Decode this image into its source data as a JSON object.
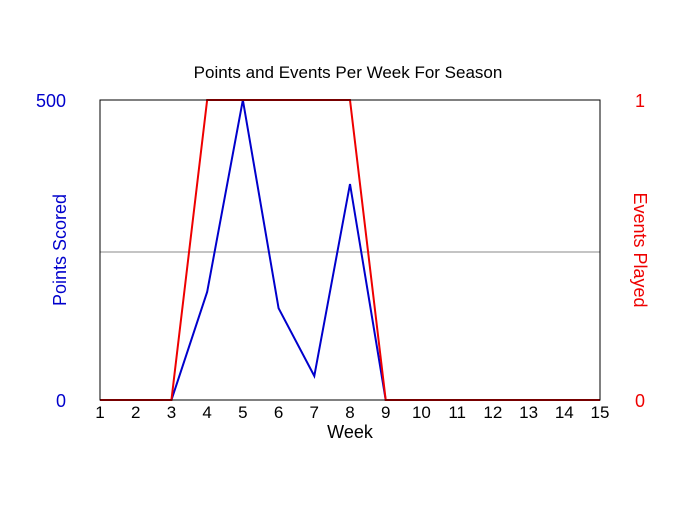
{
  "chart_data": {
    "type": "line",
    "title": "Points and Events Per Week For Season",
    "xlabel": "Week",
    "ylabel_left": "Points Scored",
    "ylabel_right": "Events Played",
    "x": [
      1,
      2,
      3,
      4,
      5,
      6,
      7,
      8,
      9,
      10,
      11,
      12,
      13,
      14,
      15
    ],
    "xlim": [
      1,
      15
    ],
    "ylim_left": [
      0,
      500
    ],
    "ylim_right": [
      0,
      1
    ],
    "yticks_left": [
      "0",
      "500"
    ],
    "yticks_right": [
      "0",
      "1"
    ],
    "grid": "single horizontal midline",
    "series": [
      {
        "axis": "left",
        "color": "#0000cc",
        "values": [
          0,
          0,
          0,
          180,
          500,
          153,
          40,
          360,
          0,
          0,
          0,
          0,
          0,
          0,
          0
        ]
      },
      {
        "axis": "right",
        "color": "#ee0000",
        "values": [
          0,
          0,
          0,
          1,
          1,
          1,
          1,
          1,
          0,
          0,
          0,
          0,
          0,
          0,
          0
        ]
      }
    ]
  }
}
